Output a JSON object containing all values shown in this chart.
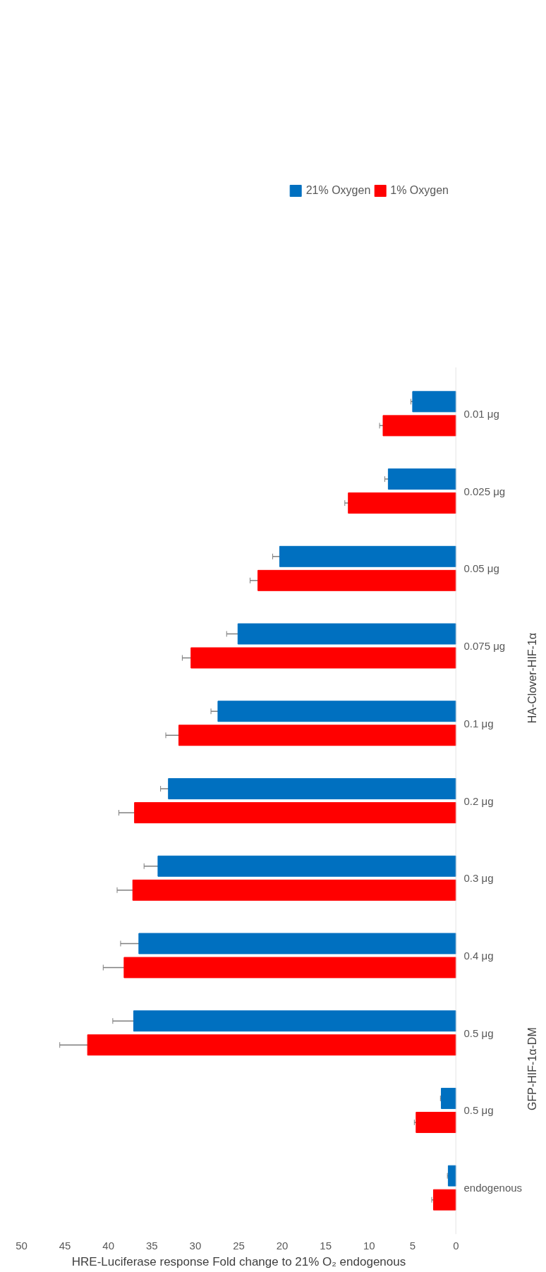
{
  "chart_data": {
    "type": "bar",
    "orientation": "horizontal",
    "categories": [
      "0.01 μg",
      "0.025 μg",
      "0.05 μg",
      "0.075 μg",
      "0.1 μg",
      "0.2 μg",
      "0.3 μg",
      "0.4 μg",
      "0.5 μg",
      "0.5 μg",
      "endogenous"
    ],
    "series": [
      {
        "name": "21% Oxygen",
        "color": "#0070c0",
        "values": [
          5.0,
          7.8,
          20.3,
          25.1,
          27.4,
          33.1,
          34.3,
          36.5,
          37.1,
          1.7,
          0.9
        ],
        "errors": [
          0.2,
          0.4,
          0.8,
          1.3,
          0.8,
          0.9,
          1.6,
          2.1,
          2.4,
          0.1,
          0.1
        ]
      },
      {
        "name": "1% Oxygen",
        "color": "#ff0000",
        "values": [
          8.4,
          12.4,
          22.8,
          30.5,
          31.9,
          37.0,
          37.2,
          38.2,
          42.4,
          4.6,
          2.6
        ],
        "errors": [
          0.4,
          0.4,
          0.9,
          1.0,
          1.5,
          1.8,
          1.8,
          2.4,
          3.2,
          0.2,
          0.2
        ]
      }
    ],
    "xlabel": "HRE-Luciferase response Fold change to 21% O₂ endogenous",
    "xlim": [
      50,
      0
    ],
    "xticks": [
      0,
      5,
      10,
      15,
      20,
      25,
      30,
      35,
      40,
      45,
      50
    ],
    "annotations": [
      "HA-Clover-HIF-1α",
      "GFP-HIF-1α-DM"
    ],
    "legend": "top",
    "grid": false
  }
}
